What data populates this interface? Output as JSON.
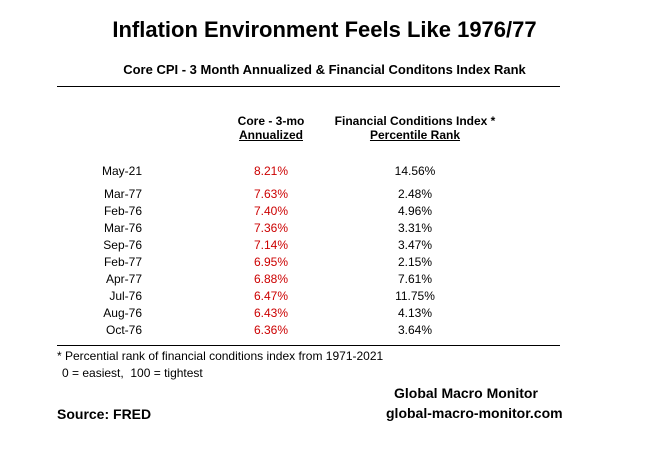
{
  "title": "Inflation Environment Feels Like 1976/77",
  "subtitle": "Core CPI - 3 Month Annualized & Financial Conditons Index Rank",
  "chart_data": {
    "type": "table",
    "columns": [
      {
        "line1": "Core - 3-mo",
        "line2": "Annualized"
      },
      {
        "line1": "Financial Conditions Index *",
        "line2": "Percentile Rank"
      }
    ],
    "rows": [
      {
        "date": "May-21",
        "core": "8.21%",
        "fci": "14.56%"
      },
      {
        "date": "Mar-77",
        "core": "7.63%",
        "fci": "2.48%"
      },
      {
        "date": "Feb-76",
        "core": "7.40%",
        "fci": "4.96%"
      },
      {
        "date": "Mar-76",
        "core": "7.36%",
        "fci": "3.31%"
      },
      {
        "date": "Sep-76",
        "core": "7.14%",
        "fci": "3.47%"
      },
      {
        "date": "Feb-77",
        "core": "6.95%",
        "fci": "2.15%"
      },
      {
        "date": "Apr-77",
        "core": "6.88%",
        "fci": "7.61%"
      },
      {
        "date": "Jul-76",
        "core": "6.47%",
        "fci": "11.75%"
      },
      {
        "date": "Aug-76",
        "core": "6.43%",
        "fci": "4.13%"
      },
      {
        "date": "Oct-76",
        "core": "6.36%",
        "fci": "3.64%"
      }
    ]
  },
  "footnote": {
    "line1": "* Percential rank of financial conditions index from 1971-2021",
    "line2": "0 = easiest,  100 = tightest"
  },
  "source": "Source:  FRED",
  "brand": {
    "name": "Global Macro Monitor",
    "url": "global-macro-monitor.com"
  },
  "colors": {
    "core_values": "#cc0000",
    "text": "#000000"
  }
}
